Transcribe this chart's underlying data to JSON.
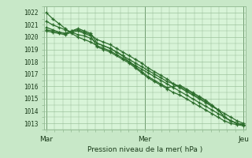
{
  "background_color": "#c8e8c8",
  "plot_bg_color": "#d8f4d8",
  "grid_color": "#90b890",
  "line_color": "#2d6e2d",
  "xlabel": "Pression niveau de la mer( hPa )",
  "yticks": [
    1013,
    1014,
    1015,
    1016,
    1017,
    1018,
    1019,
    1020,
    1021,
    1022
  ],
  "ylim": [
    1012.5,
    1022.5
  ],
  "xtick_labels": [
    "Mar",
    "",
    "Mer",
    "",
    "Jeu"
  ],
  "xtick_positions": [
    0,
    24,
    48,
    72,
    96
  ],
  "xlim": [
    -1,
    97
  ],
  "series": [
    [
      1022.0,
      1021.5,
      1021.1,
      1020.7,
      1020.3,
      1020.0,
      1019.8,
      1019.6,
      1019.3,
      1019.1,
      1018.9,
      1018.6,
      1018.3,
      1018.0,
      1017.7,
      1017.4,
      1017.1,
      1016.8,
      1016.5,
      1016.2,
      1015.9,
      1015.6,
      1015.3,
      1015.0,
      1014.7,
      1014.4,
      1014.1,
      1013.8,
      1013.5,
      1013.2,
      1013.0,
      1012.9
    ],
    [
      1021.3,
      1021.0,
      1020.8,
      1020.6,
      1020.4,
      1020.2,
      1020.1,
      1019.9,
      1019.5,
      1019.3,
      1019.1,
      1018.8,
      1018.5,
      1018.2,
      1017.9,
      1017.6,
      1017.3,
      1017.0,
      1016.7,
      1016.4,
      1016.2,
      1015.9,
      1015.6,
      1015.3,
      1015.0,
      1014.7,
      1014.4,
      1014.1,
      1013.5,
      1013.2,
      1013.0,
      1012.9
    ],
    [
      1020.8,
      1020.6,
      1020.4,
      1020.3,
      1020.5,
      1020.7,
      1020.5,
      1020.3,
      1019.5,
      1019.3,
      1019.1,
      1018.8,
      1018.5,
      1018.0,
      1017.6,
      1017.2,
      1016.8,
      1016.5,
      1016.2,
      1015.9,
      1016.0,
      1016.1,
      1015.8,
      1015.5,
      1015.2,
      1014.9,
      1014.5,
      1014.1,
      1013.5,
      1013.2,
      1013.0,
      1012.9
    ],
    [
      1020.5,
      1020.4,
      1020.3,
      1020.2,
      1020.4,
      1020.5,
      1020.3,
      1020.1,
      1019.2,
      1019.0,
      1018.8,
      1018.5,
      1018.2,
      1017.9,
      1017.5,
      1017.1,
      1016.7,
      1016.4,
      1016.1,
      1015.8,
      1015.5,
      1015.3,
      1015.0,
      1014.7,
      1014.4,
      1014.1,
      1013.8,
      1013.5,
      1013.2,
      1013.0,
      1012.9,
      1012.8
    ],
    [
      1020.6,
      1020.5,
      1020.4,
      1020.3,
      1020.5,
      1020.6,
      1020.4,
      1020.2,
      1019.8,
      1019.6,
      1019.4,
      1019.1,
      1018.8,
      1018.5,
      1018.2,
      1017.9,
      1017.5,
      1017.2,
      1016.9,
      1016.6,
      1016.2,
      1016.0,
      1015.7,
      1015.4,
      1015.1,
      1014.8,
      1014.4,
      1014.1,
      1013.8,
      1013.5,
      1013.2,
      1013.0
    ]
  ],
  "n_points": 32
}
